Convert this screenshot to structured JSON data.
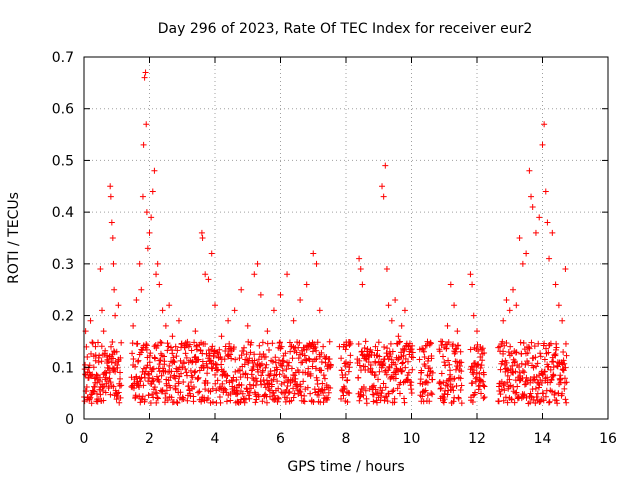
{
  "chart_data": {
    "type": "scatter",
    "title": "Day 296 of 2023, Rate Of TEC Index for receiver eur2",
    "xlabel": "GPS time / hours",
    "ylabel": "ROTI / TECUs",
    "xlim": [
      0,
      16
    ],
    "ylim": [
      0,
      0.7
    ],
    "xticks": [
      0,
      2,
      4,
      6,
      8,
      10,
      12,
      14,
      16
    ],
    "xtick_labels": [
      "0",
      "2",
      "4",
      "6",
      "8",
      "10",
      "12",
      "14",
      "16"
    ],
    "yticks": [
      0,
      0.1,
      0.2,
      0.3,
      0.4,
      0.5,
      0.6,
      0.7
    ],
    "ytick_labels": [
      "0",
      "0.1",
      "0.2",
      "0.3",
      "0.4",
      "0.5",
      "0.6",
      "0.7"
    ],
    "grid": true,
    "marker": "+",
    "color": "#ff0000",
    "series": [
      {
        "points": [
          [
            0.05,
            0.17
          ],
          [
            0.1,
            0.12
          ],
          [
            0.15,
            0.08
          ],
          [
            0.2,
            0.19
          ],
          [
            0.25,
            0.05
          ],
          [
            0.3,
            0.1
          ],
          [
            0.35,
            0.14
          ],
          [
            0.4,
            0.07
          ],
          [
            0.45,
            0.11
          ],
          [
            0.5,
            0.29
          ],
          [
            0.55,
            0.21
          ],
          [
            0.6,
            0.17
          ],
          [
            0.65,
            0.09
          ],
          [
            0.7,
            0.12
          ],
          [
            0.75,
            0.06
          ],
          [
            0.8,
            0.45
          ],
          [
            0.82,
            0.43
          ],
          [
            0.85,
            0.38
          ],
          [
            0.88,
            0.35
          ],
          [
            0.9,
            0.3
          ],
          [
            0.92,
            0.25
          ],
          [
            0.95,
            0.2
          ],
          [
            1.0,
            0.13
          ],
          [
            1.05,
            0.22
          ],
          [
            1.1,
            0.09
          ],
          [
            1.5,
            0.18
          ],
          [
            1.6,
            0.23
          ],
          [
            1.7,
            0.3
          ],
          [
            1.75,
            0.25
          ],
          [
            1.8,
            0.43
          ],
          [
            1.82,
            0.53
          ],
          [
            1.85,
            0.66
          ],
          [
            1.88,
            0.67
          ],
          [
            1.9,
            0.57
          ],
          [
            1.92,
            0.4
          ],
          [
            1.95,
            0.33
          ],
          [
            2.0,
            0.36
          ],
          [
            2.05,
            0.39
          ],
          [
            2.1,
            0.44
          ],
          [
            2.15,
            0.48
          ],
          [
            2.2,
            0.28
          ],
          [
            2.25,
            0.3
          ],
          [
            2.3,
            0.26
          ],
          [
            2.4,
            0.21
          ],
          [
            2.5,
            0.18
          ],
          [
            2.6,
            0.22
          ],
          [
            2.7,
            0.16
          ],
          [
            2.8,
            0.14
          ],
          [
            2.9,
            0.19
          ],
          [
            3.0,
            0.1
          ],
          [
            3.2,
            0.14
          ],
          [
            3.4,
            0.17
          ],
          [
            3.6,
            0.36
          ],
          [
            3.62,
            0.35
          ],
          [
            3.7,
            0.28
          ],
          [
            3.8,
            0.27
          ],
          [
            3.9,
            0.32
          ],
          [
            4.0,
            0.22
          ],
          [
            4.2,
            0.16
          ],
          [
            4.4,
            0.19
          ],
          [
            4.6,
            0.21
          ],
          [
            4.8,
            0.25
          ],
          [
            5.0,
            0.18
          ],
          [
            5.2,
            0.28
          ],
          [
            5.3,
            0.3
          ],
          [
            5.4,
            0.24
          ],
          [
            5.6,
            0.17
          ],
          [
            5.8,
            0.21
          ],
          [
            6.0,
            0.24
          ],
          [
            6.2,
            0.28
          ],
          [
            6.4,
            0.19
          ],
          [
            6.6,
            0.23
          ],
          [
            6.8,
            0.26
          ],
          [
            7.0,
            0.32
          ],
          [
            7.1,
            0.3
          ],
          [
            7.2,
            0.21
          ],
          [
            7.4,
            0.12
          ],
          [
            7.8,
            0.14
          ],
          [
            7.9,
            0.08
          ],
          [
            8.0,
            0.11
          ],
          [
            8.1,
            0.05
          ],
          [
            8.4,
            0.31
          ],
          [
            8.45,
            0.29
          ],
          [
            8.5,
            0.26
          ],
          [
            8.6,
            0.15
          ],
          [
            8.7,
            0.12
          ],
          [
            8.8,
            0.09
          ],
          [
            8.9,
            0.14
          ],
          [
            9.0,
            0.11
          ],
          [
            9.1,
            0.45
          ],
          [
            9.15,
            0.43
          ],
          [
            9.2,
            0.49
          ],
          [
            9.25,
            0.29
          ],
          [
            9.3,
            0.22
          ],
          [
            9.4,
            0.19
          ],
          [
            9.5,
            0.23
          ],
          [
            9.6,
            0.16
          ],
          [
            9.7,
            0.18
          ],
          [
            9.8,
            0.21
          ],
          [
            9.9,
            0.14
          ],
          [
            10.0,
            0.12
          ],
          [
            10.3,
            0.09
          ],
          [
            10.4,
            0.12
          ],
          [
            10.5,
            0.07
          ],
          [
            10.6,
            0.05
          ],
          [
            10.9,
            0.15
          ],
          [
            11.0,
            0.11
          ],
          [
            11.1,
            0.18
          ],
          [
            11.2,
            0.26
          ],
          [
            11.3,
            0.22
          ],
          [
            11.4,
            0.17
          ],
          [
            11.5,
            0.13
          ],
          [
            11.8,
            0.28
          ],
          [
            11.85,
            0.26
          ],
          [
            11.9,
            0.2
          ],
          [
            12.0,
            0.17
          ],
          [
            12.1,
            0.12
          ],
          [
            12.2,
            0.09
          ],
          [
            12.7,
            0.14
          ],
          [
            12.8,
            0.19
          ],
          [
            12.9,
            0.23
          ],
          [
            13.0,
            0.21
          ],
          [
            13.1,
            0.25
          ],
          [
            13.2,
            0.22
          ],
          [
            13.3,
            0.35
          ],
          [
            13.4,
            0.3
          ],
          [
            13.5,
            0.32
          ],
          [
            13.6,
            0.48
          ],
          [
            13.65,
            0.43
          ],
          [
            13.7,
            0.41
          ],
          [
            13.8,
            0.36
          ],
          [
            13.9,
            0.39
          ],
          [
            14.0,
            0.53
          ],
          [
            14.05,
            0.57
          ],
          [
            14.1,
            0.44
          ],
          [
            14.15,
            0.38
          ],
          [
            14.2,
            0.31
          ],
          [
            14.3,
            0.36
          ],
          [
            14.4,
            0.26
          ],
          [
            14.5,
            0.22
          ],
          [
            14.6,
            0.19
          ],
          [
            14.7,
            0.29
          ]
        ]
      }
    ]
  }
}
